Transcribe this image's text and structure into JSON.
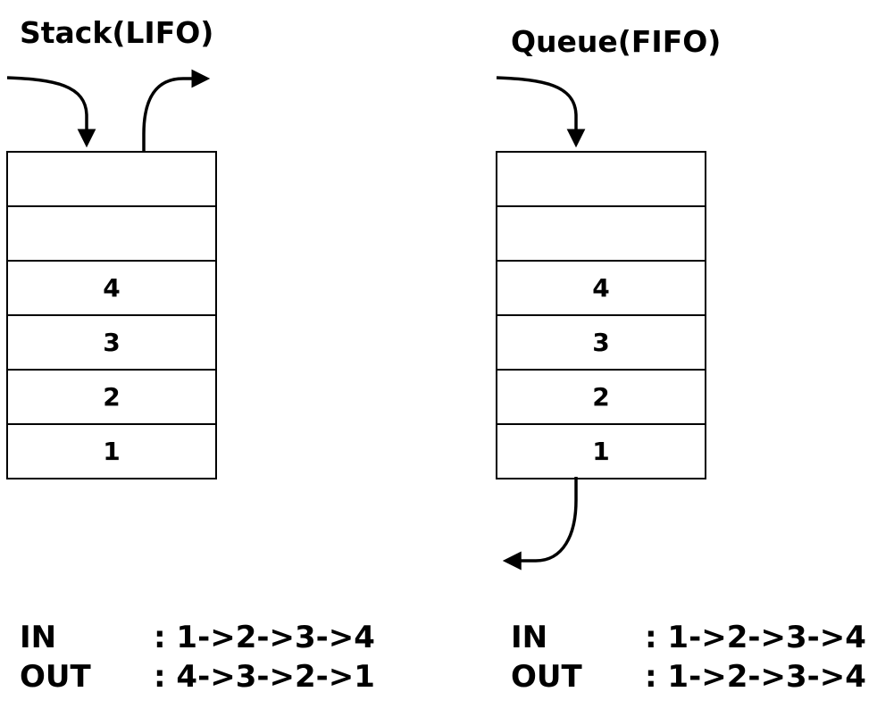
{
  "stack": {
    "title": "Stack(LIFO)",
    "cells": [
      "",
      "",
      "4",
      "3",
      "2",
      "1"
    ],
    "in_label": "IN",
    "in_value": ": 1->2->3->4",
    "out_label": "OUT",
    "out_value": ": 4->3->2->1"
  },
  "queue": {
    "title": "Queue(FIFO)",
    "cells": [
      "",
      "",
      "4",
      "3",
      "2",
      "1"
    ],
    "in_label": "IN",
    "in_value": ": 1->2->3->4",
    "out_label": "OUT",
    "out_value": ": 1->2->3->4"
  }
}
